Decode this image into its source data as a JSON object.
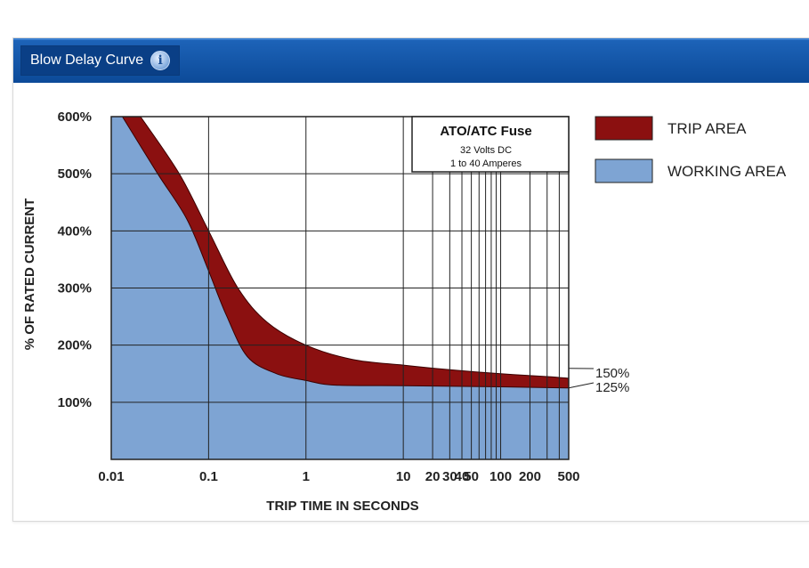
{
  "header": {
    "title": "Blow Delay Curve",
    "info_icon": "info-icon"
  },
  "colors": {
    "header_blue": "#0c4a98",
    "trip_area": "#8b1010",
    "working_area": "#7ea4d3",
    "grid": "#222222"
  },
  "chart_data": {
    "type": "area",
    "title": "ATO/ATC Fuse",
    "subtitle_lines": [
      "32 Volts DC",
      "1 to 40 Amperes"
    ],
    "xlabel": "TRIP TIME IN SECONDS",
    "ylabel": "% OF RATED CURRENT",
    "x_scale": "log",
    "xlim": [
      0.01,
      500
    ],
    "ylim": [
      0,
      600
    ],
    "grid": true,
    "x_ticks": [
      0.01,
      0.1,
      1,
      10,
      20,
      30,
      40,
      50,
      100,
      200,
      500
    ],
    "x_tick_labels": [
      "0.01",
      "0.1",
      "1",
      "10",
      "20",
      "30",
      "40",
      "50",
      "100",
      "200",
      "500"
    ],
    "x_minor_grid": [
      60,
      70,
      80,
      90,
      300,
      400
    ],
    "y_ticks": [
      100,
      200,
      300,
      400,
      500,
      600
    ],
    "y_tick_labels": [
      "100%",
      "200%",
      "300%",
      "400%",
      "500%",
      "600%"
    ],
    "legend_position": "right",
    "series": [
      {
        "name": "TRIP AREA",
        "color": "#8b1010",
        "upper": [
          [
            0.02,
            600
          ],
          [
            0.05,
            500
          ],
          [
            0.1,
            400
          ],
          [
            0.2,
            300
          ],
          [
            0.4,
            240
          ],
          [
            1,
            200
          ],
          [
            3,
            175
          ],
          [
            10,
            165
          ],
          [
            30,
            157
          ],
          [
            100,
            150
          ],
          [
            300,
            145
          ],
          [
            500,
            142
          ]
        ],
        "lower": [
          [
            0.013,
            600
          ],
          [
            0.03,
            500
          ],
          [
            0.06,
            420
          ],
          [
            0.1,
            330
          ],
          [
            0.15,
            255
          ],
          [
            0.25,
            180
          ],
          [
            0.5,
            150
          ],
          [
            1,
            138
          ],
          [
            2,
            130
          ],
          [
            10,
            129
          ],
          [
            100,
            127
          ],
          [
            500,
            125
          ]
        ]
      },
      {
        "name": "WORKING AREA",
        "color": "#7ea4d3"
      }
    ],
    "reference_lines": [
      {
        "label": "150%",
        "value": 150
      },
      {
        "label": "125%",
        "value": 125
      }
    ]
  }
}
